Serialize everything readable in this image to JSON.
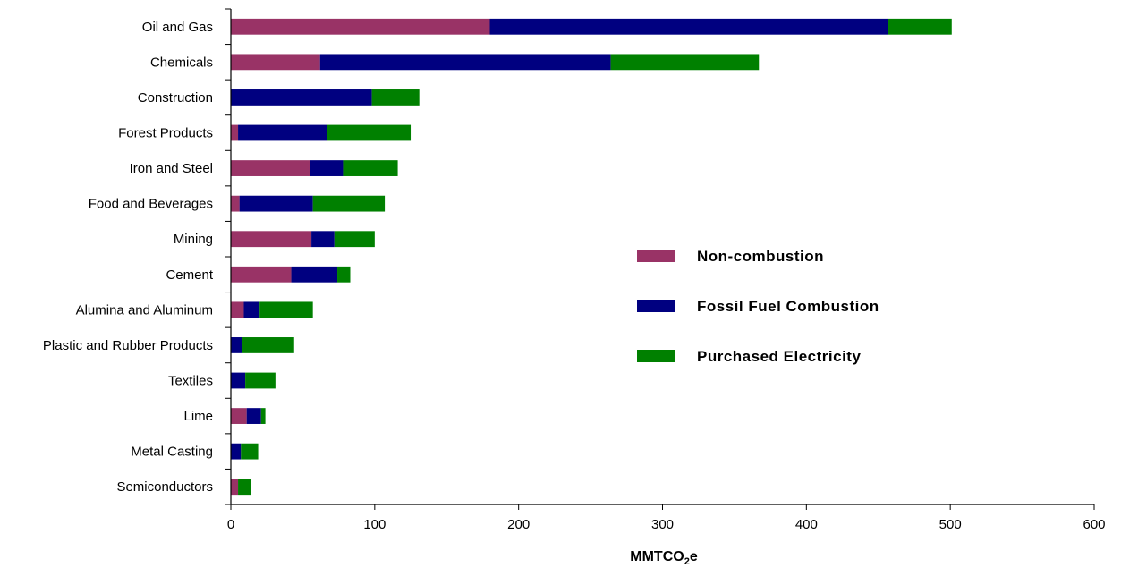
{
  "chart_data": {
    "type": "bar",
    "orientation": "horizontal",
    "stacked": true,
    "categories": [
      "Oil and Gas",
      "Chemicals",
      "Construction",
      "Forest Products",
      "Iron and Steel",
      "Food and Beverages",
      "Mining",
      "Cement",
      "Alumina and Aluminum",
      "Plastic and Rubber Products",
      "Textiles",
      "Lime",
      "Metal Casting",
      "Semiconductors"
    ],
    "series": [
      {
        "name": "Non-combustion",
        "color": "#993366",
        "values": [
          180,
          62,
          0,
          5,
          55,
          6,
          56,
          42,
          9,
          0,
          0,
          11,
          0,
          5
        ]
      },
      {
        "name": "Fossil Fuel Combustion",
        "color": "#000080",
        "values": [
          277,
          202,
          98,
          62,
          23,
          51,
          16,
          32,
          11,
          8,
          10,
          10,
          7,
          0
        ]
      },
      {
        "name": "Purchased Electricity",
        "color": "#008000",
        "values": [
          44,
          103,
          33,
          58,
          38,
          50,
          28,
          9,
          37,
          36,
          21,
          3,
          12,
          9
        ]
      }
    ],
    "xlabel": "MMTCO",
    "xlabel_sub": "2",
    "xlabel_suffix": "e",
    "ylabel": "",
    "xlim": [
      0,
      600
    ],
    "xticks": [
      "0",
      "100",
      "200",
      "300",
      "400",
      "500",
      "600"
    ],
    "grid": false,
    "legend_position": "right-middle"
  }
}
